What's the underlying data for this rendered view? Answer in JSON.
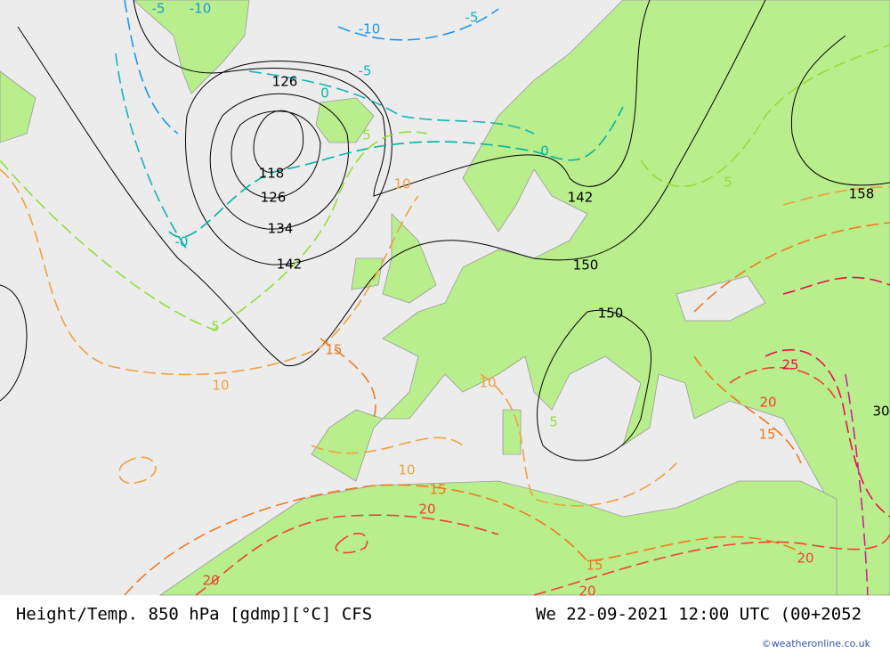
{
  "map": {
    "height_labels": [
      "126",
      "118",
      "126",
      "134",
      "142",
      "142",
      "150",
      "150",
      "158"
    ],
    "temp_labels": [
      "-5",
      "-10",
      "-5",
      "-10",
      "-5",
      "0",
      "0",
      "-0",
      "5",
      "5",
      "5",
      "10",
      "10",
      "10",
      "10",
      "15",
      "15",
      "15",
      "15",
      "20",
      "20",
      "20",
      "20",
      "20",
      "25",
      "30",
      "5"
    ]
  },
  "footer": {
    "title": "Height/Temp. 850 hPa [gdmp][°C] CFS",
    "datetime": "We 22-09-2021 12:00 UTC (00+2052",
    "credit": "©weatheronline.co.uk"
  }
}
